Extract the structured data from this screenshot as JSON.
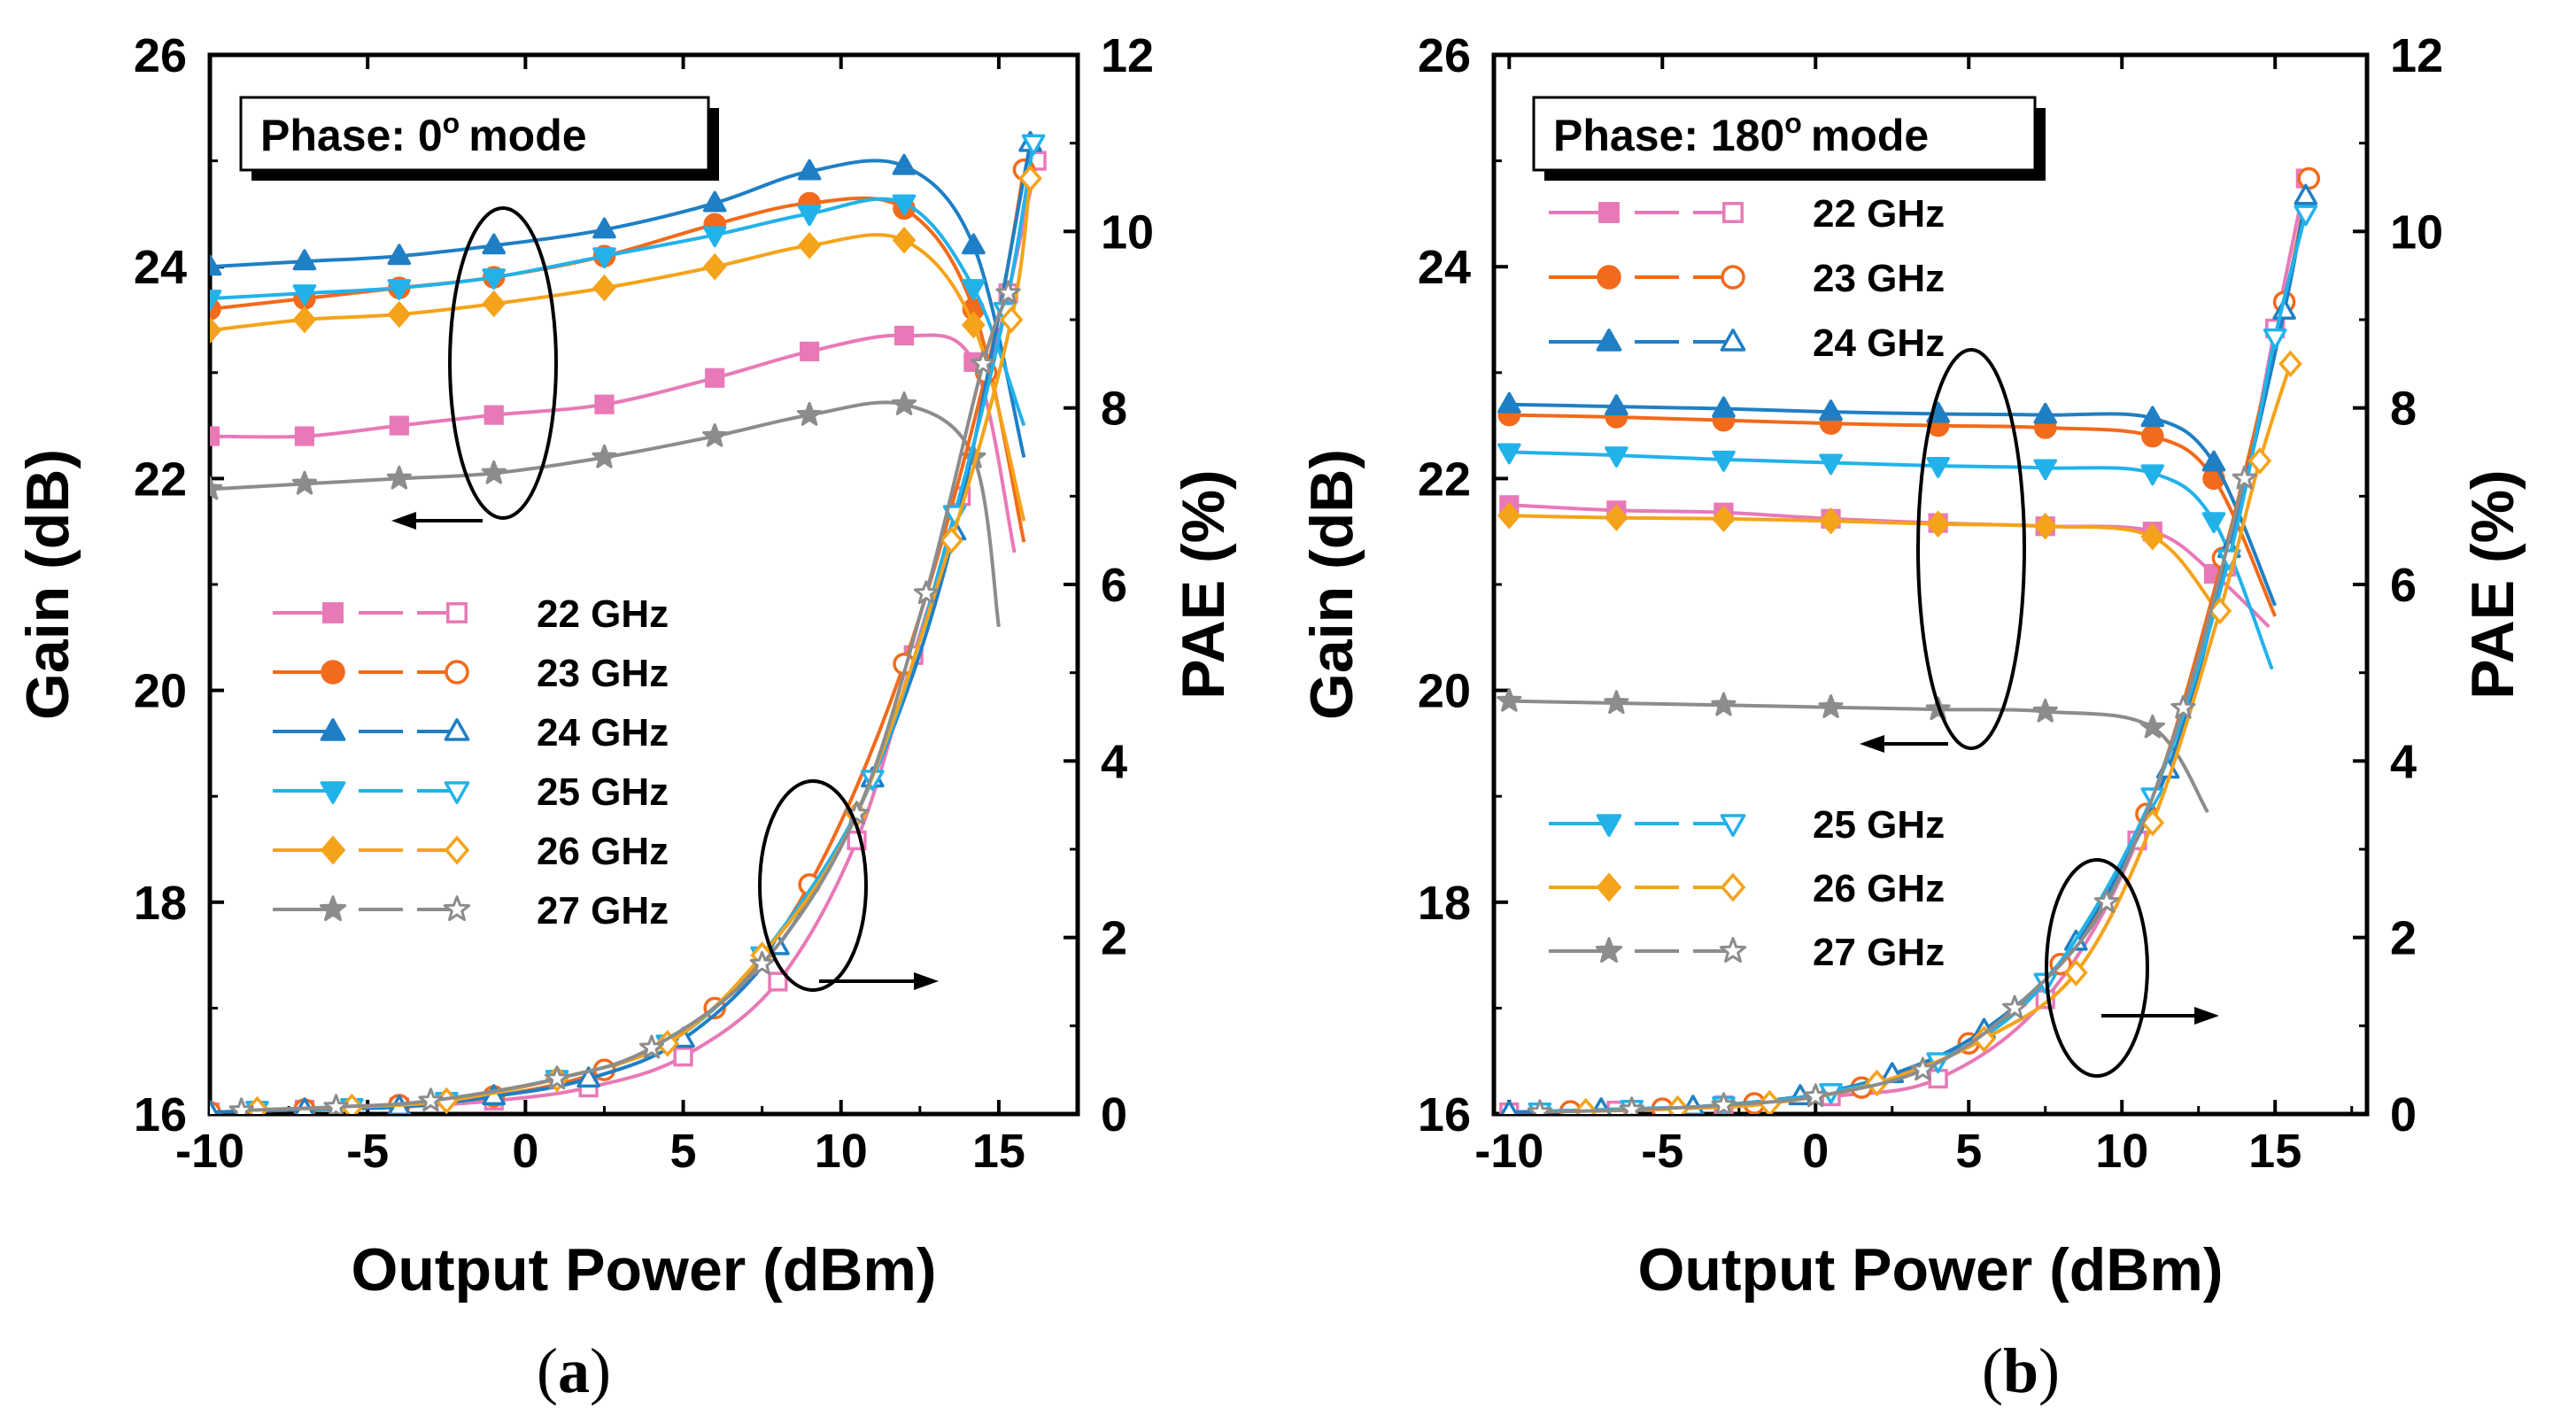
{
  "colors": {
    "22 GHz": "#e879b7",
    "23 GHz": "#f26a1b",
    "24 GHz": "#1f7fc4",
    "25 GHz": "#22b2ea",
    "26 GHz": "#f5a31a",
    "27 GHz": "#8c8c8c"
  },
  "markers": {
    "22 GHz": "square",
    "23 GHz": "circle",
    "24 GHz": "triangle-up",
    "25 GHz": "triangle-down",
    "26 GHz": "diamond",
    "27 GHz": "star"
  },
  "chart_data": [
    {
      "type": "line",
      "panel_label": "a",
      "annotation": "Phase: 0",
      "annotation_sup": "o",
      "annotation_suffix": "mode",
      "xlabel": "Output Power (dBm)",
      "ylabel": "Gain (dB)",
      "y2label": "PAE (%)",
      "xlim": [
        -10,
        17.5
      ],
      "ylim": [
        16,
        26
      ],
      "y2lim": [
        0,
        12
      ],
      "xticks": [
        -10,
        -5,
        0,
        5,
        10,
        15
      ],
      "yticks": [
        16,
        18,
        20,
        22,
        24,
        26
      ],
      "y2ticks": [
        0,
        2,
        4,
        6,
        8,
        10,
        12
      ],
      "legend": [
        "22 GHz",
        "23 GHz",
        "24 GHz",
        "25 GHz",
        "26 GHz",
        "27 GHz"
      ],
      "legend_position": "middle-left",
      "gain_series": [
        {
          "name": "22 GHz",
          "x": [
            -10,
            -7,
            -4,
            -1,
            2.5,
            6,
            9,
            12,
            14.2,
            15.5
          ],
          "y": [
            22.4,
            22.4,
            22.5,
            22.6,
            22.7,
            22.95,
            23.2,
            23.35,
            23.1,
            21.3
          ]
        },
        {
          "name": "23 GHz",
          "x": [
            -10,
            -7,
            -4,
            -1,
            2.5,
            6,
            9,
            12,
            14.2,
            15.8
          ],
          "y": [
            23.6,
            23.7,
            23.8,
            23.9,
            24.1,
            24.4,
            24.6,
            24.55,
            23.6,
            21.4
          ]
        },
        {
          "name": "24 GHz",
          "x": [
            -10,
            -7,
            -4,
            -1,
            2.5,
            6,
            9,
            12,
            14.2,
            15.8
          ],
          "y": [
            24.0,
            24.05,
            24.1,
            24.2,
            24.35,
            24.6,
            24.9,
            24.95,
            24.2,
            22.2
          ]
        },
        {
          "name": "25 GHz",
          "x": [
            -10,
            -7,
            -4,
            -1,
            2.5,
            6,
            9,
            12,
            14.2,
            15.8
          ],
          "y": [
            23.7,
            23.75,
            23.8,
            23.9,
            24.1,
            24.3,
            24.5,
            24.6,
            23.8,
            22.5
          ]
        },
        {
          "name": "26 GHz",
          "x": [
            -10,
            -7,
            -4,
            -1,
            2.5,
            6,
            9,
            12,
            14.2,
            15.8
          ],
          "y": [
            23.4,
            23.5,
            23.55,
            23.65,
            23.8,
            24.0,
            24.2,
            24.25,
            23.45,
            21.6
          ]
        },
        {
          "name": "27 GHz",
          "x": [
            -10,
            -7,
            -4,
            -1,
            2.5,
            6,
            9,
            12,
            14.2,
            15.0
          ],
          "y": [
            21.9,
            21.95,
            22.0,
            22.05,
            22.2,
            22.4,
            22.6,
            22.7,
            22.2,
            20.6
          ]
        }
      ],
      "pae_series": [
        {
          "name": "22 GHz",
          "x": [
            -10,
            -7,
            -4,
            -1,
            2,
            5,
            8,
            10.5,
            12.3,
            13.8,
            15.3,
            16.2
          ],
          "y": [
            0.02,
            0.05,
            0.08,
            0.15,
            0.3,
            0.65,
            1.5,
            3.1,
            5.2,
            7.0,
            9.3,
            10.8
          ]
        },
        {
          "name": "23 GHz",
          "x": [
            -10,
            -7,
            -4,
            -1,
            2.5,
            6,
            9,
            12,
            14.6,
            15.8
          ],
          "y": [
            0.02,
            0.05,
            0.1,
            0.2,
            0.5,
            1.2,
            2.6,
            5.1,
            8.4,
            10.7
          ]
        },
        {
          "name": "24 GHz",
          "x": [
            -10,
            -7,
            -4,
            -1,
            2,
            5,
            8,
            11,
            13.6,
            16.0
          ],
          "y": [
            0.02,
            0.05,
            0.08,
            0.2,
            0.4,
            0.85,
            1.9,
            3.8,
            6.6,
            11.0
          ]
        },
        {
          "name": "25 GHz",
          "x": [
            -8.5,
            -5.5,
            -2.5,
            1,
            4.5,
            7.5,
            11,
            13.6,
            15.2,
            16.1
          ],
          "y": [
            0.05,
            0.08,
            0.15,
            0.4,
            0.8,
            1.8,
            3.8,
            6.8,
            9.1,
            11.0
          ]
        },
        {
          "name": "26 GHz",
          "x": [
            -8.5,
            -5.5,
            -2.5,
            1,
            4.5,
            7.5,
            10.5,
            13.5,
            15.4,
            16.0
          ],
          "y": [
            0.05,
            0.08,
            0.15,
            0.4,
            0.8,
            1.8,
            3.4,
            6.5,
            9.0,
            10.6
          ]
        },
        {
          "name": "27 GHz",
          "x": [
            -9,
            -6,
            -3,
            1,
            4,
            7.5,
            10.5,
            12.7,
            14.5,
            15.3
          ],
          "y": [
            0.04,
            0.08,
            0.15,
            0.4,
            0.75,
            1.7,
            3.4,
            5.9,
            8.5,
            9.3
          ]
        }
      ],
      "annotations": [
        {
          "type": "ellipse",
          "target": "gain",
          "arrow": "left"
        },
        {
          "type": "ellipse",
          "target": "pae",
          "arrow": "right"
        }
      ]
    },
    {
      "type": "line",
      "panel_label": "b",
      "annotation": "Phase: 180",
      "annotation_sup": "o",
      "annotation_suffix": "mode",
      "xlabel": "Output Power (dBm)",
      "ylabel": "Gain (dB)",
      "y2label": "PAE (%)",
      "xlim": [
        -10.5,
        18
      ],
      "ylim": [
        16,
        26
      ],
      "y2lim": [
        0,
        12
      ],
      "xticks": [
        -10,
        -5,
        0,
        5,
        10,
        15
      ],
      "yticks": [
        16,
        18,
        20,
        22,
        24,
        26
      ],
      "y2ticks": [
        0,
        2,
        4,
        6,
        8,
        10,
        12
      ],
      "legend": [
        "22 GHz",
        "23 GHz",
        "24 GHz",
        "25 GHz",
        "26 GHz",
        "27 GHz"
      ],
      "legend_position": "split: top-left (22-24 GHz), lower-left (25-27 GHz)",
      "gain_series": [
        {
          "name": "22 GHz",
          "x": [
            -10,
            -6.5,
            -3,
            0.5,
            4,
            7.5,
            11,
            13,
            14.8
          ],
          "y": [
            21.75,
            21.7,
            21.68,
            21.62,
            21.58,
            21.55,
            21.5,
            21.1,
            20.6
          ]
        },
        {
          "name": "23 GHz",
          "x": [
            -10,
            -6.5,
            -3,
            0.5,
            4,
            7.5,
            11,
            13,
            15.0
          ],
          "y": [
            22.6,
            22.58,
            22.55,
            22.52,
            22.5,
            22.48,
            22.4,
            22.0,
            20.7
          ]
        },
        {
          "name": "24 GHz",
          "x": [
            -10,
            -6.5,
            -3,
            0.5,
            4,
            7.5,
            11,
            13,
            15.0
          ],
          "y": [
            22.7,
            22.68,
            22.66,
            22.63,
            22.61,
            22.6,
            22.57,
            22.15,
            20.8
          ]
        },
        {
          "name": "25 GHz",
          "x": [
            -10,
            -6.5,
            -3,
            0.5,
            4,
            7.5,
            11,
            13,
            14.9
          ],
          "y": [
            22.25,
            22.22,
            22.18,
            22.15,
            22.12,
            22.1,
            22.05,
            21.6,
            20.2
          ]
        },
        {
          "name": "26 GHz",
          "x": [
            -10,
            -6.5,
            -3,
            0.5,
            4,
            7.5,
            11,
            13
          ],
          "y": [
            21.65,
            21.63,
            21.62,
            21.6,
            21.57,
            21.55,
            21.45,
            20.8
          ]
        },
        {
          "name": "27 GHz",
          "x": [
            -10,
            -6.5,
            -3,
            0.5,
            4,
            7.5,
            11,
            12.8
          ],
          "y": [
            19.9,
            19.88,
            19.86,
            19.84,
            19.82,
            19.8,
            19.65,
            18.85
          ]
        }
      ],
      "pae_series": [
        {
          "name": "22 GHz",
          "x": [
            -10,
            -6.5,
            -3,
            0.5,
            4,
            7.5,
            10.5,
            13.4,
            15.0,
            16.0
          ],
          "y": [
            0.02,
            0.04,
            0.1,
            0.2,
            0.4,
            1.3,
            3.1,
            6.2,
            8.9,
            10.6
          ]
        },
        {
          "name": "23 GHz",
          "x": [
            -8,
            -5,
            -2,
            1.5,
            5,
            8,
            10.8,
            13.3,
            15.3,
            16.1
          ],
          "y": [
            0.03,
            0.06,
            0.12,
            0.3,
            0.8,
            1.7,
            3.4,
            6.3,
            9.2,
            10.6
          ]
        },
        {
          "name": "24 GHz",
          "x": [
            -10,
            -7,
            -4,
            -0.5,
            2.5,
            5.5,
            8.5,
            11.5,
            13.5,
            15.3,
            16.0
          ],
          "y": [
            0.02,
            0.05,
            0.08,
            0.2,
            0.45,
            0.95,
            1.95,
            3.9,
            6.4,
            9.1,
            10.4
          ]
        },
        {
          "name": "25 GHz",
          "x": [
            -9,
            -6,
            -3,
            0.5,
            4,
            7.5,
            11,
            13.5,
            15.0,
            16.0
          ],
          "y": [
            0.03,
            0.06,
            0.1,
            0.25,
            0.6,
            1.5,
            3.6,
            6.3,
            8.8,
            10.2
          ]
        },
        {
          "name": "26 GHz",
          "x": [
            -7.5,
            -4.5,
            -1.5,
            2,
            5.5,
            8.5,
            11,
            13.2,
            14.5,
            15.5
          ],
          "y": [
            0.03,
            0.06,
            0.12,
            0.35,
            0.85,
            1.6,
            3.3,
            5.7,
            7.4,
            8.5
          ]
        },
        {
          "name": "27 GHz",
          "x": [
            -9,
            -6,
            -3,
            0,
            3.5,
            6.5,
            9.5,
            12,
            14.0
          ],
          "y": [
            0.02,
            0.05,
            0.1,
            0.2,
            0.5,
            1.2,
            2.4,
            4.6,
            7.2
          ]
        }
      ],
      "annotations": [
        {
          "type": "ellipse",
          "target": "gain",
          "arrow": "left"
        },
        {
          "type": "ellipse",
          "target": "pae",
          "arrow": "right"
        }
      ]
    }
  ],
  "captions": [
    {
      "open": "(",
      "label": "a",
      "close": ")"
    },
    {
      "open": "(",
      "label": "b",
      "close": ")"
    }
  ]
}
